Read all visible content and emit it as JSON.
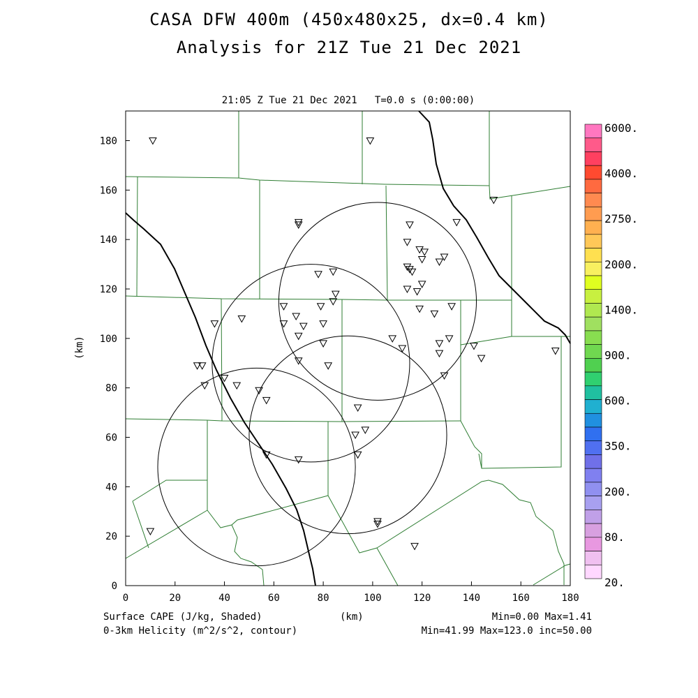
{
  "title": {
    "line1": "CASA DFW 400m (450x480x25, dx=0.4 km)",
    "line2": "Analysis for 21Z Tue 21 Dec 2021"
  },
  "plot_time": "21:05 Z Tue 21 Dec 2021   T=0.0 s (0:00:00)",
  "footer": {
    "left1": "Surface CAPE (J/kg, Shaded)",
    "left2": "0-3km Helicity (m^2/s^2, contour)",
    "mid": "(km)",
    "right1": "Min=0.00 Max=1.41",
    "right2": "Min=41.99 Max=123.0 inc=50.00"
  },
  "axes": {
    "xlabel": "(km)",
    "ylabel": "(km)",
    "xlim": [
      0,
      180
    ],
    "ylim": [
      0,
      192
    ],
    "xticks": [
      0,
      20,
      40,
      60,
      80,
      100,
      120,
      140,
      160,
      180
    ],
    "yticks": [
      0,
      20,
      40,
      60,
      80,
      100,
      120,
      140,
      160,
      180
    ]
  },
  "colorbar": {
    "labels": [
      "6000.",
      "4000.",
      "2750.",
      "2000.",
      "1400.",
      "900.",
      "600.",
      "350.",
      "200.",
      "80.",
      "20."
    ],
    "colors": [
      "#ff77c0",
      "#ff5a8a",
      "#ff4060",
      "#ff4a30",
      "#ff6a40",
      "#ff8a50",
      "#ff9c50",
      "#ffb050",
      "#ffc858",
      "#ffe050",
      "#f8f060",
      "#e0ff20",
      "#c8f040",
      "#b0e850",
      "#a0e060",
      "#88dd50",
      "#70d850",
      "#50d050",
      "#30d070",
      "#20c0a0",
      "#20b0d0",
      "#2090e0",
      "#3070f0",
      "#5070f0",
      "#7070e8",
      "#8080f0",
      "#9090f0",
      "#a8a0f0",
      "#c0a0e8",
      "#d8a0e0",
      "#e898e0",
      "#f0c0f0",
      "#ffd8ff"
    ]
  },
  "legend": {
    "cape_title": "Surface CAPE (J/kg, Shaded)",
    "helicity_title": "0-3km Helicity (m^2/s^2, contour)"
  },
  "map_colors": {
    "county_lines": "#2e7d32",
    "contours": "#000000",
    "background": "#ffffff"
  },
  "radar_rings": [
    {
      "center": [
        102,
        115
      ],
      "radius": 40
    },
    {
      "center": [
        75,
        90
      ],
      "radius": 40
    },
    {
      "center": [
        90,
        61
      ],
      "radius": 40
    },
    {
      "center": [
        53,
        48
      ],
      "radius": 40
    }
  ],
  "stations": [
    [
      11,
      180
    ],
    [
      99,
      180
    ],
    [
      70,
      147
    ],
    [
      70,
      146
    ],
    [
      115,
      146
    ],
    [
      134,
      147
    ],
    [
      149,
      156
    ],
    [
      114,
      139
    ],
    [
      119,
      136
    ],
    [
      121,
      135
    ],
    [
      120,
      132
    ],
    [
      127,
      131
    ],
    [
      129,
      133
    ],
    [
      78,
      126
    ],
    [
      84,
      127
    ],
    [
      114,
      129
    ],
    [
      115,
      128
    ],
    [
      116,
      127
    ],
    [
      114,
      120
    ],
    [
      118,
      119
    ],
    [
      120,
      122
    ],
    [
      85,
      118
    ],
    [
      84,
      115
    ],
    [
      64,
      113
    ],
    [
      69,
      109
    ],
    [
      79,
      113
    ],
    [
      47,
      108
    ],
    [
      36,
      106
    ],
    [
      64,
      106
    ],
    [
      72,
      105
    ],
    [
      80,
      106
    ],
    [
      119,
      112
    ],
    [
      125,
      110
    ],
    [
      132,
      113
    ],
    [
      70,
      101
    ],
    [
      108,
      100
    ],
    [
      112,
      96
    ],
    [
      127,
      98
    ],
    [
      127,
      94
    ],
    [
      131,
      100
    ],
    [
      141,
      97
    ],
    [
      144,
      92
    ],
    [
      174,
      95
    ],
    [
      80,
      98
    ],
    [
      70,
      91
    ],
    [
      82,
      89
    ],
    [
      29,
      89
    ],
    [
      31,
      89
    ],
    [
      32,
      81
    ],
    [
      40,
      84
    ],
    [
      45,
      81
    ],
    [
      54,
      79
    ],
    [
      57,
      75
    ],
    [
      129,
      85
    ],
    [
      94,
      72
    ],
    [
      97,
      63
    ],
    [
      93,
      61
    ],
    [
      94,
      53
    ],
    [
      57,
      53
    ],
    [
      70,
      51
    ],
    [
      102,
      26
    ],
    [
      102,
      25
    ],
    [
      10,
      22
    ],
    [
      117,
      16
    ]
  ]
}
